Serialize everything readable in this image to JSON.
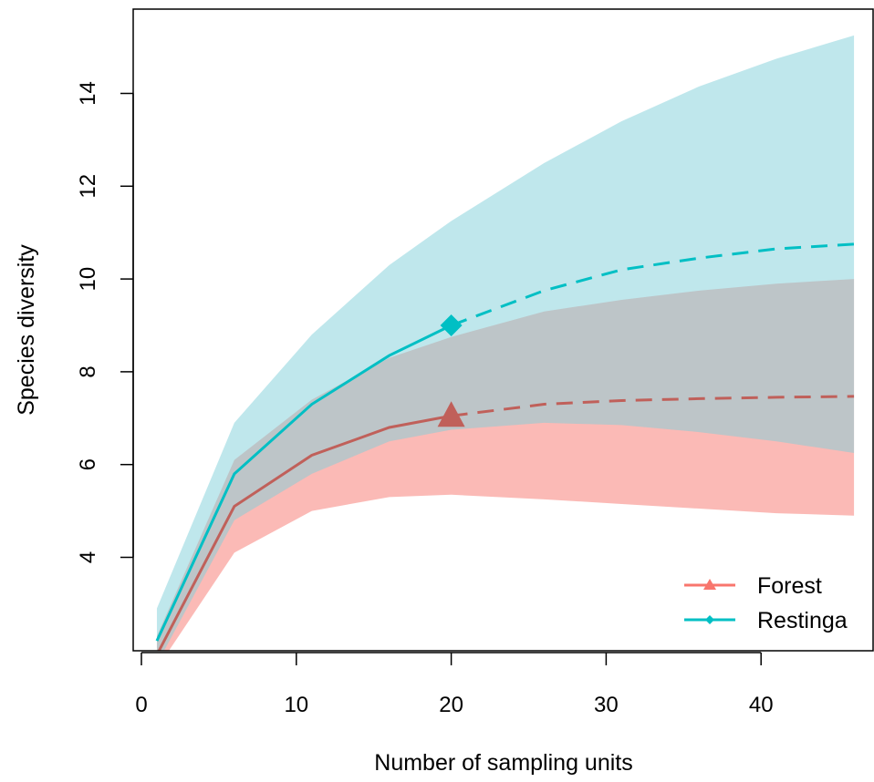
{
  "chart_data": {
    "type": "line",
    "xlabel": "Number of sampling units",
    "ylabel": "Species diversity",
    "xlim": [
      -0.6,
      46.0
    ],
    "ylim": [
      2.0,
      15.6
    ],
    "xticks": [
      0,
      10,
      20,
      30,
      40
    ],
    "yticks": [
      4,
      6,
      8,
      10,
      12,
      14
    ],
    "grid": false,
    "legend_position": "bottom-right",
    "observed_size": 20,
    "series": [
      {
        "name": "Forest",
        "color": "#C0605A",
        "legend_color": "#F8766D",
        "band_color": "#F8766D",
        "marker": "triangle",
        "x": [
          1,
          6,
          11,
          16,
          20,
          26,
          31,
          36,
          41,
          46
        ],
        "y": [
          1.9,
          5.1,
          6.2,
          6.8,
          7.05,
          7.3,
          7.38,
          7.42,
          7.45,
          7.47
        ],
        "lower": [
          1.6,
          4.1,
          5.0,
          5.3,
          5.35,
          5.25,
          5.15,
          5.05,
          4.95,
          4.9
        ],
        "upper": [
          2.3,
          6.1,
          7.4,
          8.3,
          8.75,
          9.3,
          9.55,
          9.75,
          9.9,
          10.0
        ]
      },
      {
        "name": "Restinga",
        "color": "#00BFC4",
        "legend_color": "#00BFC4",
        "band_color": "#7FCFDA",
        "marker": "diamond",
        "x": [
          1,
          6,
          11,
          16,
          20,
          26,
          31,
          36,
          41,
          46
        ],
        "y": [
          2.2,
          5.8,
          7.3,
          8.35,
          9.0,
          9.75,
          10.2,
          10.45,
          10.65,
          10.75
        ],
        "lower": [
          1.7,
          4.8,
          5.8,
          6.5,
          6.75,
          6.9,
          6.85,
          6.7,
          6.5,
          6.25
        ],
        "upper": [
          2.9,
          6.9,
          8.8,
          10.3,
          11.25,
          12.5,
          13.4,
          14.15,
          14.75,
          15.25
        ]
      }
    ]
  }
}
